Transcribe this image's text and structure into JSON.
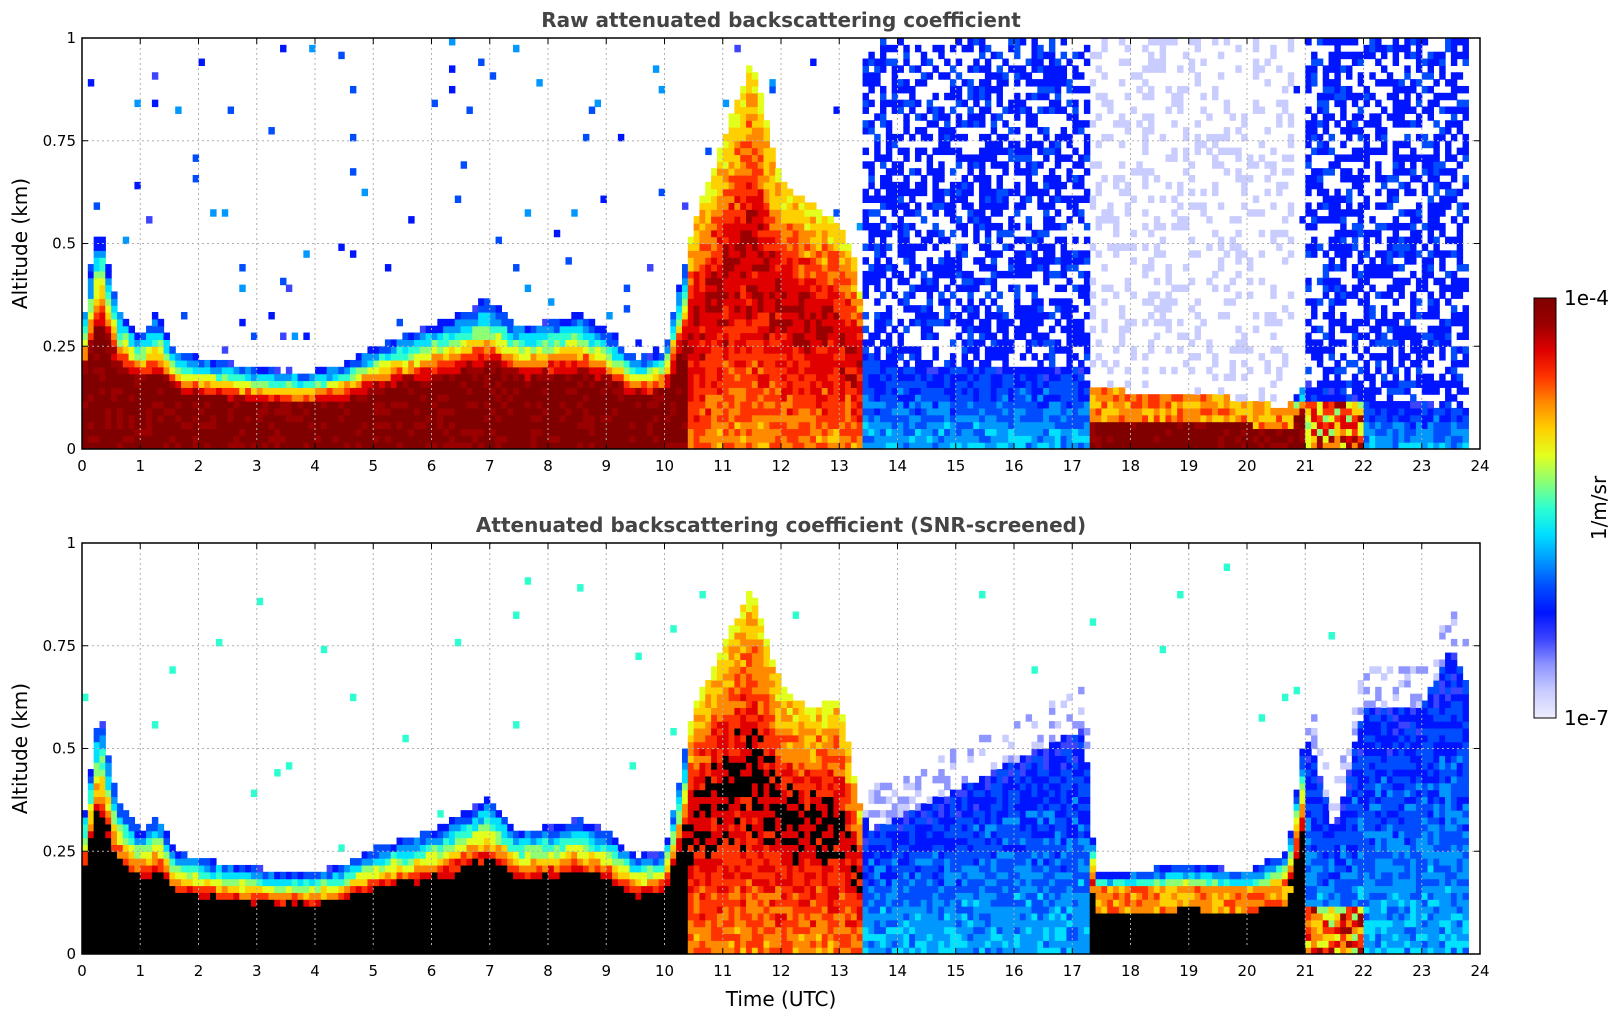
{
  "figure": {
    "colorbar": {
      "max_label": "1e-4",
      "min_label": "1e-7",
      "unit_label": "1/m/sr"
    },
    "colormap": [
      "#eeeeff",
      "#c9ccff",
      "#8f96ff",
      "#3c44ff",
      "#0015ff",
      "#004cff",
      "#0098ff",
      "#00e0ff",
      "#2dffd0",
      "#8cff74",
      "#e2ff1e",
      "#ffd000",
      "#ff8a00",
      "#ff3300",
      "#e00000",
      "#9a0000",
      "#800000"
    ]
  },
  "chart_data": [
    {
      "type": "heatmap",
      "title": "Raw attenuated backscattering coefficient",
      "xlabel": "",
      "ylabel": "Altitude (km)",
      "xlim": [
        0,
        24
      ],
      "ylim": [
        0,
        1
      ],
      "xticks": [
        "0",
        "1",
        "2",
        "3",
        "4",
        "5",
        "6",
        "7",
        "8",
        "9",
        "10",
        "11",
        "12",
        "13",
        "14",
        "15",
        "16",
        "17",
        "18",
        "19",
        "20",
        "21",
        "22",
        "23",
        "24"
      ],
      "yticks": [
        "0",
        "0.25",
        "0.5",
        "0.75",
        "1"
      ],
      "grid": true,
      "color_scale": "log",
      "value_range": [
        1e-07,
        0.0001
      ],
      "value_unit": "1/m/sr",
      "boundary_layer_top_km": [
        [
          0,
          0.3
        ],
        [
          0.3,
          0.55
        ],
        [
          0.6,
          0.35
        ],
        [
          1,
          0.28
        ],
        [
          1.3,
          0.33
        ],
        [
          1.6,
          0.24
        ],
        [
          2.5,
          0.21
        ],
        [
          3.5,
          0.19
        ],
        [
          4,
          0.19
        ],
        [
          4.5,
          0.21
        ],
        [
          5,
          0.25
        ],
        [
          6,
          0.3
        ],
        [
          7,
          0.36
        ],
        [
          7.5,
          0.3
        ],
        [
          8,
          0.31
        ],
        [
          8.5,
          0.33
        ],
        [
          9,
          0.29
        ],
        [
          9.5,
          0.22
        ],
        [
          10,
          0.24
        ],
        [
          10.5,
          0.55
        ],
        [
          11,
          0.75
        ],
        [
          11.5,
          0.95
        ],
        [
          12,
          0.65
        ],
        [
          12.5,
          0.6
        ],
        [
          13,
          0.55
        ],
        [
          13.3,
          0.45
        ],
        [
          13.5,
          0.2
        ],
        [
          17.2,
          0.2
        ],
        [
          17.3,
          0.15
        ],
        [
          18,
          0.14
        ],
        [
          19,
          0.14
        ],
        [
          20,
          0.12
        ],
        [
          20.7,
          0.1
        ],
        [
          21,
          0.16
        ],
        [
          21.8,
          0.14
        ],
        [
          22,
          0.12
        ],
        [
          24,
          0.1
        ]
      ]
    },
    {
      "type": "heatmap",
      "title": "Attenuated backscattering coefficient (SNR-screened)",
      "xlabel": "Time (UTC)",
      "ylabel": "Altitude (km)",
      "xlim": [
        0,
        24
      ],
      "ylim": [
        0,
        1
      ],
      "xticks": [
        "0",
        "1",
        "2",
        "3",
        "4",
        "5",
        "6",
        "7",
        "8",
        "9",
        "10",
        "11",
        "12",
        "13",
        "14",
        "15",
        "16",
        "17",
        "18",
        "19",
        "20",
        "21",
        "22",
        "23",
        "24"
      ],
      "yticks": [
        "0",
        "0.25",
        "0.5",
        "0.75",
        "1"
      ],
      "grid": true,
      "color_scale": "log",
      "value_range": [
        1e-07,
        0.0001
      ],
      "value_unit": "1/m/sr",
      "screened_values_color": "black",
      "boundary_layer_top_km": [
        [
          0,
          0.3
        ],
        [
          0.3,
          0.6
        ],
        [
          0.6,
          0.38
        ],
        [
          1,
          0.3
        ],
        [
          1.3,
          0.34
        ],
        [
          1.6,
          0.25
        ],
        [
          2.5,
          0.22
        ],
        [
          3.5,
          0.2
        ],
        [
          4,
          0.2
        ],
        [
          4.5,
          0.22
        ],
        [
          5,
          0.26
        ],
        [
          6,
          0.3
        ],
        [
          7,
          0.38
        ],
        [
          7.5,
          0.3
        ],
        [
          8,
          0.31
        ],
        [
          8.5,
          0.33
        ],
        [
          9,
          0.3
        ],
        [
          9.5,
          0.24
        ],
        [
          10,
          0.25
        ],
        [
          10.5,
          0.6
        ],
        [
          11,
          0.75
        ],
        [
          11.5,
          0.9
        ],
        [
          12,
          0.65
        ],
        [
          12.5,
          0.6
        ],
        [
          13,
          0.62
        ],
        [
          13.3,
          0.4
        ],
        [
          13.5,
          0.3
        ],
        [
          17.2,
          0.55
        ],
        [
          17.4,
          0.2
        ],
        [
          18,
          0.2
        ],
        [
          19,
          0.22
        ],
        [
          20,
          0.2
        ],
        [
          20.7,
          0.25
        ],
        [
          21,
          0.55
        ],
        [
          21.5,
          0.3
        ],
        [
          22,
          0.6
        ],
        [
          23,
          0.6
        ],
        [
          23.5,
          0.75
        ],
        [
          24,
          0.6
        ]
      ]
    }
  ]
}
